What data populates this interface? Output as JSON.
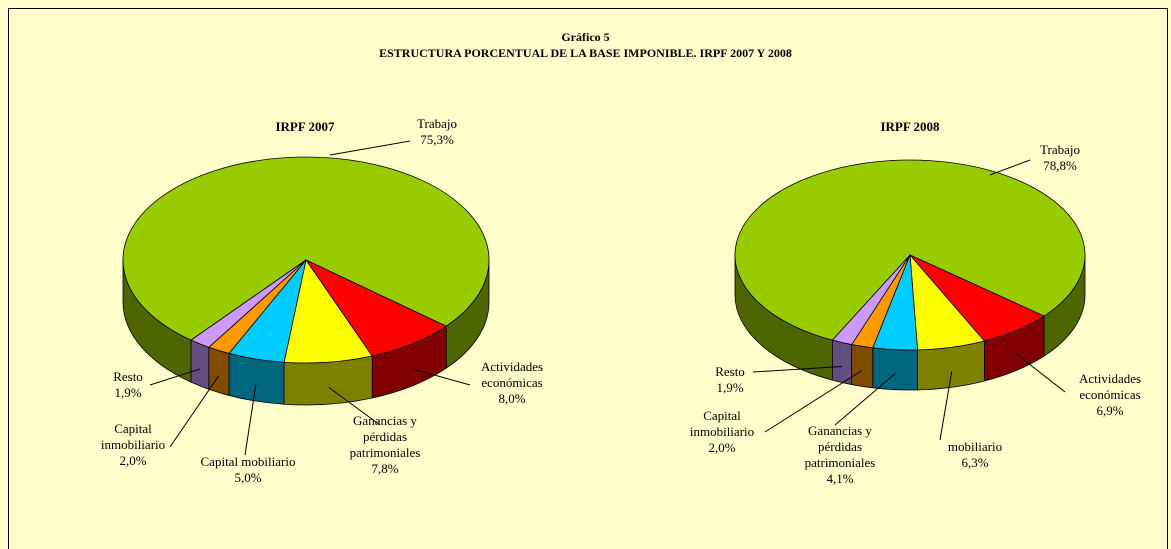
{
  "header": {
    "title": "Gráfico 5",
    "subtitle": "ESTRUCTURA PORCENTUAL DE LA BASE IMPONIBLE. IRPF 2007 Y 2008"
  },
  "chart_data": [
    {
      "type": "pie",
      "title": "IRPF 2007",
      "categories": [
        "Trabajo",
        "Actividades económicas",
        "Ganancias y pérdidas patrimoniales",
        "Capital mobiliario",
        "Capital inmobiliario",
        "Resto"
      ],
      "values": [
        75.3,
        8.0,
        7.8,
        5.0,
        2.0,
        1.9
      ],
      "value_labels": [
        "75,3%",
        "8,0%",
        "7,8%",
        "5,0%",
        "2,0%",
        "1,9%"
      ],
      "colors": [
        "#99cc00",
        "#ff0000",
        "#ffff00",
        "#00ccff",
        "#ff9900",
        "#cc99ff"
      ]
    },
    {
      "type": "pie",
      "title": "IRPF 2008",
      "categories": [
        "Trabajo",
        "Actividades económicas",
        "mobiliario",
        "Ganancias y pérdidas patrimoniales",
        "Capital inmobiliario",
        "Resto"
      ],
      "values": [
        78.8,
        6.9,
        6.3,
        4.1,
        2.0,
        1.9
      ],
      "value_labels": [
        "78,8%",
        "6,9%",
        "6,3%",
        "4,1%",
        "2,0%",
        "1,9%"
      ],
      "colors": [
        "#99cc00",
        "#ff0000",
        "#ffff00",
        "#00ccff",
        "#ff9900",
        "#cc99ff"
      ]
    }
  ]
}
